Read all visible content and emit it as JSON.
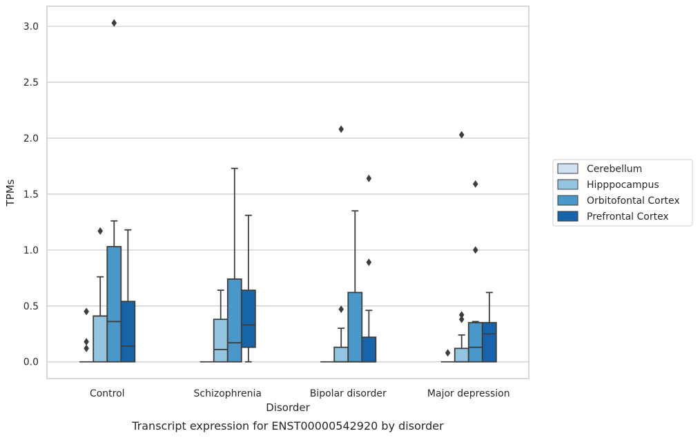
{
  "caption": "Transcript expression for ENST00000542920 by disorder",
  "chart_data": {
    "type": "box",
    "xlabel": "Disorder",
    "ylabel": "TPMs",
    "categories": [
      "Control",
      "Schizophrenia",
      "Bipolar disorder",
      "Major depression"
    ],
    "ylim": [
      -0.15,
      3.18
    ],
    "yticks": [
      0.0,
      0.5,
      1.0,
      1.5,
      2.0,
      2.5,
      3.0
    ],
    "ytick_labels": [
      "0.0",
      "0.5",
      "1.0",
      "1.5",
      "2.0",
      "2.5",
      "3.0"
    ],
    "grid": "horizontal",
    "legend_position": "right",
    "series": [
      {
        "name": "Cerebellum",
        "color": "#d0e1f2",
        "boxes": [
          {
            "q1": 0.0,
            "median": 0.0,
            "q3": 0.0,
            "whisker_low": 0.0,
            "whisker_high": 0.0,
            "outliers": [
              0.45,
              0.18,
              0.12
            ]
          },
          {
            "q1": 0.0,
            "median": 0.0,
            "q3": 0.0,
            "whisker_low": 0.0,
            "whisker_high": 0.0,
            "outliers": []
          },
          {
            "q1": 0.0,
            "median": 0.0,
            "q3": 0.0,
            "whisker_low": 0.0,
            "whisker_high": 0.0,
            "outliers": []
          },
          {
            "q1": 0.0,
            "median": 0.0,
            "q3": 0.0,
            "whisker_low": 0.0,
            "whisker_high": 0.0,
            "outliers": [
              0.08
            ]
          }
        ]
      },
      {
        "name": "Hipppocampus",
        "color": "#94c4df",
        "boxes": [
          {
            "q1": 0.0,
            "median": 0.41,
            "q3": 0.41,
            "whisker_low": 0.0,
            "whisker_high": 0.76,
            "outliers": [
              1.17
            ]
          },
          {
            "q1": 0.0,
            "median": 0.11,
            "q3": 0.38,
            "whisker_low": 0.0,
            "whisker_high": 0.64,
            "outliers": []
          },
          {
            "q1": 0.0,
            "median": 0.0,
            "q3": 0.13,
            "whisker_low": 0.0,
            "whisker_high": 0.3,
            "outliers": [
              0.47,
              2.08
            ]
          },
          {
            "q1": 0.0,
            "median": 0.0,
            "q3": 0.12,
            "whisker_low": 0.0,
            "whisker_high": 0.24,
            "outliers": [
              0.38,
              0.42,
              2.03
            ]
          }
        ]
      },
      {
        "name": "Orbitofontal Cortex",
        "color": "#4a98c9",
        "boxes": [
          {
            "q1": 0.0,
            "median": 0.36,
            "q3": 1.03,
            "whisker_low": 0.0,
            "whisker_high": 1.26,
            "outliers": [
              3.03
            ]
          },
          {
            "q1": 0.0,
            "median": 0.17,
            "q3": 0.74,
            "whisker_low": 0.0,
            "whisker_high": 1.73,
            "outliers": []
          },
          {
            "q1": 0.0,
            "median": 0.0,
            "q3": 0.62,
            "whisker_low": 0.0,
            "whisker_high": 1.35,
            "outliers": []
          },
          {
            "q1": 0.0,
            "median": 0.13,
            "q3": 0.35,
            "whisker_low": 0.0,
            "whisker_high": 0.36,
            "outliers": [
              1.0,
              1.59
            ]
          }
        ]
      },
      {
        "name": "Prefrontal Cortex",
        "color": "#1764ab",
        "boxes": [
          {
            "q1": 0.0,
            "median": 0.14,
            "q3": 0.54,
            "whisker_low": 0.0,
            "whisker_high": 1.18,
            "outliers": []
          },
          {
            "q1": 0.13,
            "median": 0.33,
            "q3": 0.64,
            "whisker_low": 0.0,
            "whisker_high": 1.31,
            "outliers": []
          },
          {
            "q1": 0.0,
            "median": 0.0,
            "q3": 0.22,
            "whisker_low": 0.0,
            "whisker_high": 0.46,
            "outliers": [
              0.89,
              1.64
            ]
          },
          {
            "q1": 0.0,
            "median": 0.25,
            "q3": 0.35,
            "whisker_low": 0.0,
            "whisker_high": 0.62,
            "outliers": []
          }
        ]
      }
    ]
  }
}
